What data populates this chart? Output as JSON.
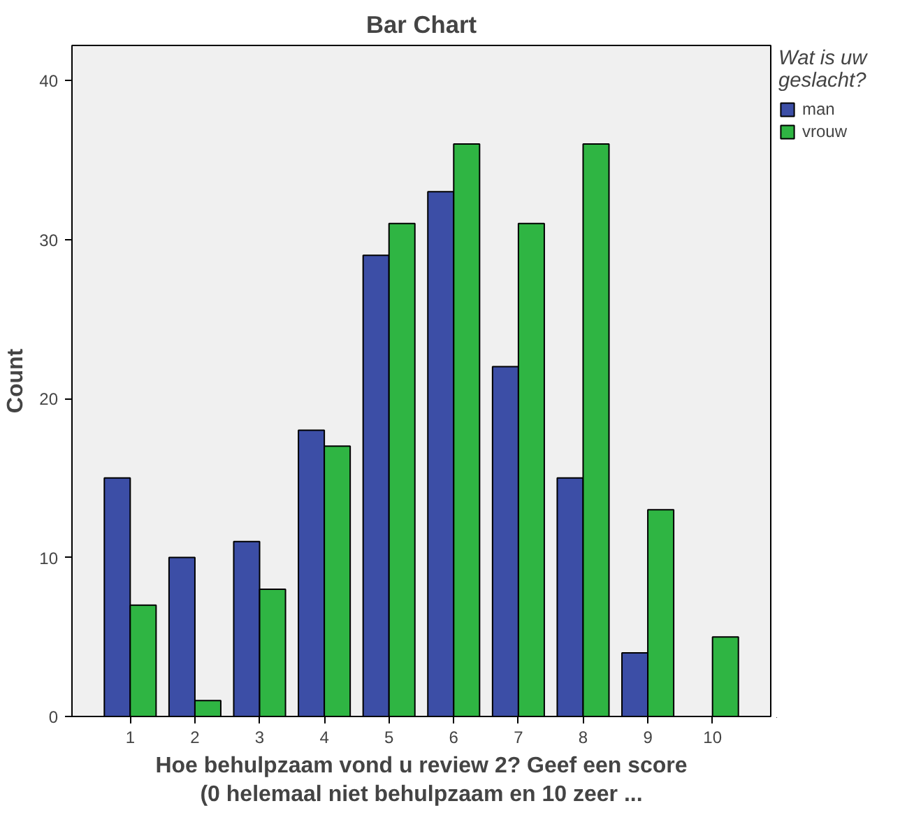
{
  "chart_data": {
    "type": "bar",
    "title": "Bar Chart",
    "xlabel": "Hoe behulpzaam vond u review 2? Geef een score\n(0 helemaal niet behulpzaam en 10 zeer ...",
    "ylabel": "Count",
    "legend_title": "Wat is uw geslacht?",
    "categories": [
      "1",
      "2",
      "3",
      "4",
      "5",
      "6",
      "7",
      "8",
      "9",
      "10"
    ],
    "series": [
      {
        "name": "man",
        "color": "#3c4ea6",
        "values": [
          15,
          10,
          11,
          18,
          29,
          33,
          22,
          15,
          4,
          null
        ]
      },
      {
        "name": "vrouw",
        "color": "#2fb543",
        "values": [
          7,
          1,
          8,
          17,
          31,
          36,
          31,
          36,
          13,
          5
        ]
      }
    ],
    "ylim": [
      0,
      42.2
    ],
    "yticks": [
      0,
      10,
      20,
      30,
      40
    ],
    "grid": false,
    "legend": "right"
  }
}
